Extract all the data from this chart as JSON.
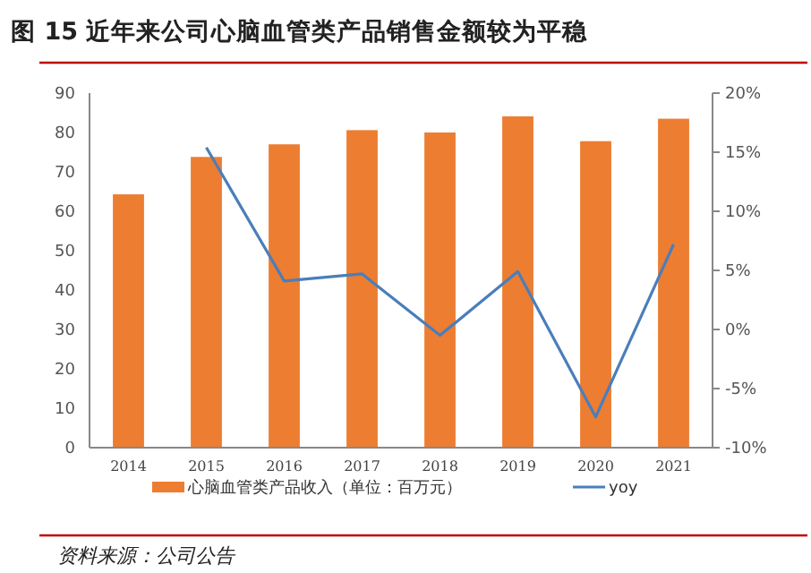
{
  "chart_data": {
    "type": "bar",
    "title": "图 15  近年来公司心脑血管类产品销售金额较为平稳",
    "categories": [
      "2014",
      "2015",
      "2016",
      "2017",
      "2018",
      "2019",
      "2020",
      "2021"
    ],
    "series": [
      {
        "name": "心脑血管类产品收入（单位：百万元）",
        "color": "#ed7d31",
        "values": [
          64.3,
          73.8,
          77.0,
          80.6,
          80.0,
          84.1,
          77.8,
          83.5
        ]
      },
      {
        "name": "yoy",
        "type": "line",
        "axis": "y2",
        "color": "#4a7ebb",
        "values": [
          null,
          15.4,
          4.1,
          4.7,
          -0.5,
          4.9,
          -7.4,
          7.2
        ]
      }
    ],
    "ylim": [
      0,
      90
    ],
    "yticks": [
      0,
      10,
      20,
      30,
      40,
      50,
      60,
      70,
      80,
      90
    ],
    "y2lim": [
      -10,
      20
    ],
    "y2ticks": [
      {
        "value": -10,
        "label": "-10%"
      },
      {
        "value": -5,
        "label": "-5%"
      },
      {
        "value": 0,
        "label": "0%"
      },
      {
        "value": 5,
        "label": "5%"
      },
      {
        "value": 10,
        "label": "10%"
      },
      {
        "value": 15,
        "label": "15%"
      },
      {
        "value": 20,
        "label": "20%"
      }
    ],
    "legend": "bottom",
    "grid": false,
    "annotations": [
      "资料来源：公司公告"
    ]
  }
}
